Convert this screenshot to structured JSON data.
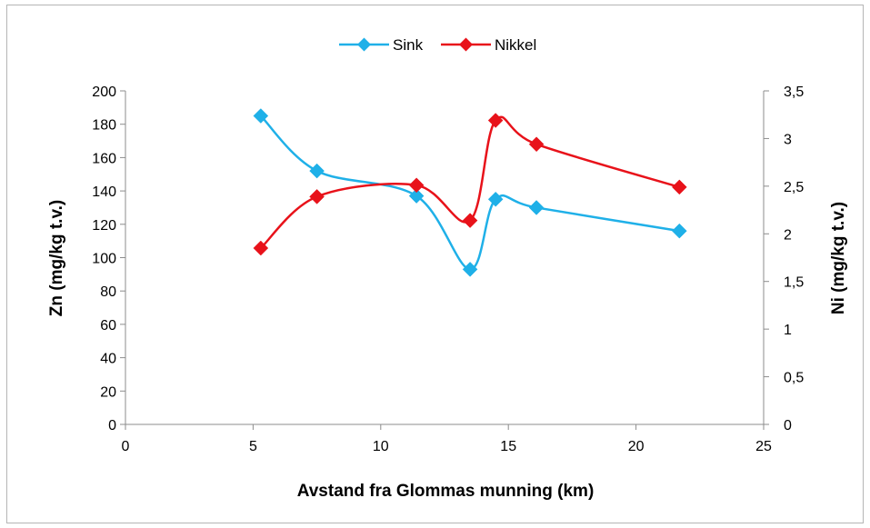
{
  "chart_data": {
    "type": "line",
    "smooth": true,
    "x": [
      5.3,
      7.5,
      11.4,
      13.5,
      14.5,
      16.1,
      21.7
    ],
    "series": [
      {
        "name": "Sink",
        "axis": "left",
        "color": "#1fb0e8",
        "values": [
          185,
          152,
          137,
          93,
          135,
          130,
          116
        ]
      },
      {
        "name": "Nikkel",
        "axis": "right",
        "color": "#e8121a",
        "values": [
          1.85,
          2.39,
          2.51,
          2.14,
          3.19,
          2.94,
          2.49
        ]
      }
    ],
    "xlabel": "Avstand fra Glommas munning (km)",
    "ylabel_left": "Zn (mg/kg t.v.)",
    "ylabel_right": "Ni (mg/kg t.v.)",
    "xlim": [
      0,
      25
    ],
    "ylim_left": [
      0,
      200
    ],
    "ylim_right": [
      0,
      3.5
    ],
    "xticks": [
      "0",
      "5",
      "10",
      "15",
      "20",
      "25"
    ],
    "yticks_left": [
      "0",
      "20",
      "40",
      "60",
      "80",
      "100",
      "120",
      "140",
      "160",
      "180",
      "200"
    ],
    "yticks_right": [
      "0",
      "0,5",
      "1",
      "1,5",
      "2",
      "2,5",
      "3",
      "3,5"
    ],
    "grid": false,
    "legend_position": "top-center"
  }
}
